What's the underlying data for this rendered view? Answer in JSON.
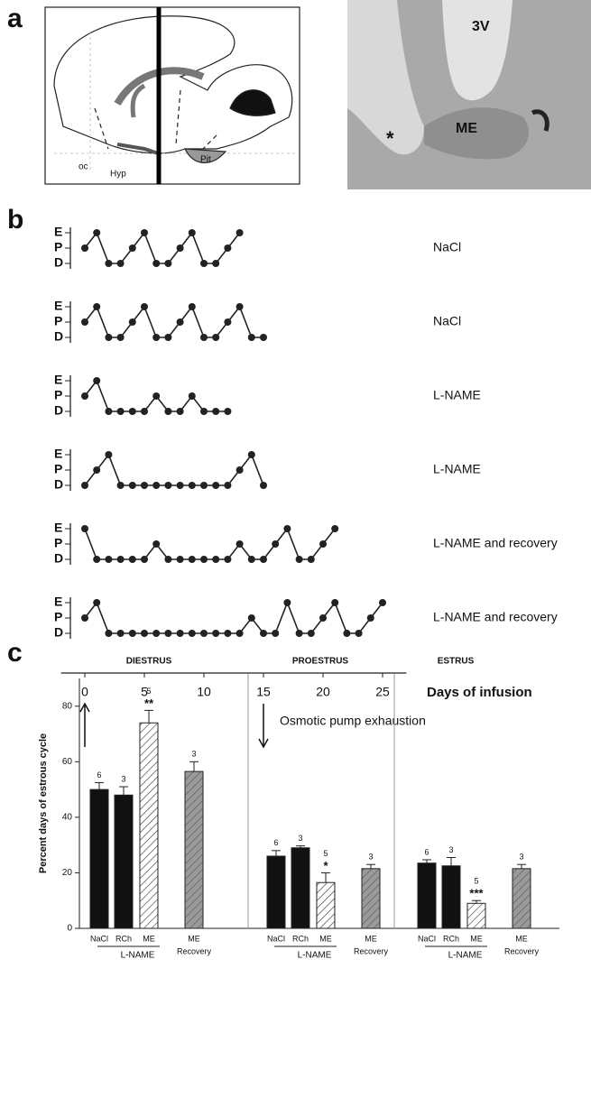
{
  "panel_labels": [
    "a",
    "b",
    "c"
  ],
  "panel_a": {
    "diagram_labels": [
      "oc",
      "Hyp",
      "Pit"
    ],
    "micrograph_labels": [
      "3V",
      "ME",
      "*"
    ]
  },
  "chart_data": [
    {
      "type": "line",
      "x_label": "Days of infusion",
      "levels": [
        "D",
        "P",
        "E"
      ],
      "xlim": [
        -2,
        27
      ],
      "xticks": [
        0,
        5,
        10,
        15,
        20,
        25
      ],
      "series": [
        {
          "name": "NaCl",
          "color": "#222222",
          "values": [
            1,
            2,
            0,
            0,
            1,
            2,
            0,
            0,
            1,
            2,
            0,
            0,
            1,
            2
          ]
        },
        {
          "name": "NaCl",
          "color": "#222222",
          "values": [
            1,
            2,
            0,
            0,
            1,
            2,
            0,
            0,
            1,
            2,
            0,
            0,
            1,
            2,
            0,
            0
          ]
        },
        {
          "name": "L-NAME",
          "color": "#222222",
          "values": [
            1,
            2,
            0,
            0,
            0,
            0,
            1,
            0,
            0,
            1,
            0,
            0,
            0
          ]
        },
        {
          "name": "L-NAME",
          "color": "#222222",
          "values": [
            0,
            1,
            2,
            0,
            0,
            0,
            0,
            0,
            0,
            0,
            0,
            0,
            0,
            1,
            2,
            0
          ]
        },
        {
          "name": "L-NAME and recovery",
          "color": "#222222",
          "values": [
            2,
            0,
            0,
            0,
            0,
            0,
            1,
            0,
            0,
            0,
            0,
            0,
            0,
            1,
            0,
            0,
            1,
            2,
            0,
            0,
            1,
            2
          ]
        },
        {
          "name": "L-NAME and recovery",
          "color": "#222222",
          "values": [
            1,
            2,
            0,
            0,
            0,
            0,
            0,
            0,
            0,
            0,
            0,
            0,
            0,
            0,
            1,
            0,
            0,
            2,
            0,
            0,
            1,
            2,
            0,
            0,
            1,
            2
          ]
        }
      ],
      "markers": [
        {
          "x": 0,
          "direction": "up"
        },
        {
          "x": 15,
          "direction": "down",
          "text": "Osmotic pump exhaustion"
        }
      ]
    },
    {
      "type": "bar",
      "categories": [
        "DIESTRUS",
        "PROESTRUS",
        "ESTRUS"
      ],
      "y_label": "Percent days of estrous cycle",
      "ylim": [
        0,
        90
      ],
      "yticks": [
        0,
        20,
        40,
        60,
        80
      ],
      "group_label": "L-NAME",
      "series": [
        {
          "name": "NaCl",
          "color": "#111111",
          "values": [
            50,
            26,
            23.5
          ],
          "errors": [
            2.5,
            2,
            1.2
          ],
          "n_labels": [
            6,
            6,
            6
          ]
        },
        {
          "name": "RCh",
          "color": "#111111",
          "values": [
            48,
            29,
            22.5
          ],
          "errors": [
            3,
            0.7,
            3
          ],
          "n_labels": [
            3,
            3,
            3
          ]
        },
        {
          "name": "ME",
          "color": "#ffffff",
          "hatch": true,
          "values": [
            74,
            16.5,
            9
          ],
          "errors": [
            4.5,
            3.5,
            1
          ],
          "n_labels": [
            5,
            5,
            5
          ],
          "annotations": [
            "**",
            "*",
            "***"
          ]
        },
        {
          "name": "ME",
          "sublabel": "Recovery",
          "color": "#9a9a9a",
          "hatch": true,
          "values": [
            56.5,
            21.5,
            21.5
          ],
          "errors": [
            3.5,
            1.5,
            1.5
          ],
          "n_labels": [
            3,
            3,
            3
          ]
        }
      ]
    }
  ]
}
